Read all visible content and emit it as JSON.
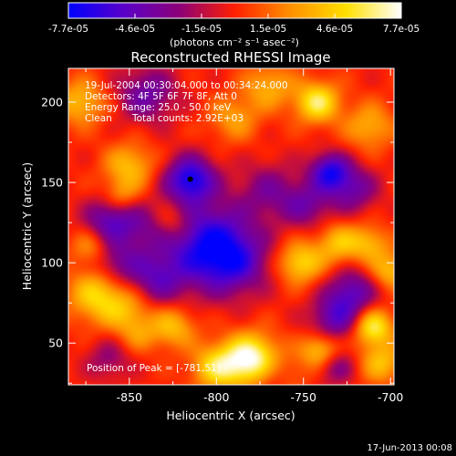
{
  "chart_data": {
    "type": "heatmap",
    "title": "Reconstructed RHESSI Image",
    "xlabel": "Heliocentric X (arcsec)",
    "ylabel": "Heliocentric Y (arcsec)",
    "xlim": [
      -885,
      -698
    ],
    "ylim": [
      24,
      221
    ],
    "x_ticks": [
      -850,
      -800,
      -750,
      -700
    ],
    "y_ticks": [
      50,
      100,
      150,
      200
    ],
    "x_tick_labels": [
      "-850",
      "-800",
      "-750",
      "-700"
    ],
    "y_tick_labels": [
      "50",
      "100",
      "150",
      "200"
    ],
    "colorbar": {
      "min": -7.7e-05,
      "max": 7.7e-05,
      "tick_labels": [
        "-7.7e-05",
        "-4.6e-05",
        "-1.5e-05",
        "1.5e-05",
        "4.6e-05",
        "7.7e-05"
      ],
      "unit_label": "(photons cm⁻² s⁻¹ asec⁻²)",
      "colors": [
        "#0000ff",
        "#5a00c8",
        "#8c0078",
        "#ff2000",
        "#ff9000",
        "#ffe000",
        "#ffffff"
      ]
    },
    "annotations": [
      "19-Jul-2004 00:30:04.000 to 00:34:24.000",
      "Detectors: 4F 5F 6F 7F 8F, Att 0",
      "Energy Range: 25.0 - 50.0 keV",
      "Clean",
      "Total counts: 2.92E+03"
    ],
    "peak_label": "Position of Peak = [-781,51]",
    "peak": [
      -781,
      51
    ],
    "sources": [
      {
        "x": -815,
        "y": 152,
        "v": -7e-05,
        "r": 10
      },
      {
        "x": -805,
        "y": 112,
        "v": -6.5e-05,
        "r": 18
      },
      {
        "x": -790,
        "y": 100,
        "v": -4e-05,
        "r": 14
      },
      {
        "x": -835,
        "y": 90,
        "v": -4e-05,
        "r": 12
      },
      {
        "x": -862,
        "y": 126,
        "v": -4.5e-05,
        "r": 10
      },
      {
        "x": -858,
        "y": 100,
        "v": -3.5e-05,
        "r": 10
      },
      {
        "x": -840,
        "y": 205,
        "v": -4e-05,
        "r": 12
      },
      {
        "x": -770,
        "y": 145,
        "v": -3e-05,
        "r": 12
      },
      {
        "x": -748,
        "y": 136,
        "v": -3.5e-05,
        "r": 10
      },
      {
        "x": -722,
        "y": 146,
        "v": -4e-05,
        "r": 10
      },
      {
        "x": -735,
        "y": 157,
        "v": -6e-05,
        "r": 8
      },
      {
        "x": -722,
        "y": 82,
        "v": -4.5e-05,
        "r": 10
      },
      {
        "x": -732,
        "y": 65,
        "v": -4.5e-05,
        "r": 10
      },
      {
        "x": -765,
        "y": 30,
        "v": -3.5e-05,
        "r": 8
      },
      {
        "x": -732,
        "y": 36,
        "v": -3.5e-05,
        "r": 8
      },
      {
        "x": -862,
        "y": 40,
        "v": -2.5e-05,
        "r": 9
      },
      {
        "x": -843,
        "y": 122,
        "v": -2.5e-05,
        "r": 10
      },
      {
        "x": -878,
        "y": 200,
        "v": 4e-05,
        "r": 10
      },
      {
        "x": -850,
        "y": 160,
        "v": 4e-05,
        "r": 10
      },
      {
        "x": -855,
        "y": 142,
        "v": 2.5e-05,
        "r": 7
      },
      {
        "x": -825,
        "y": 125,
        "v": 2.5e-05,
        "r": 8
      },
      {
        "x": -872,
        "y": 110,
        "v": 3e-05,
        "r": 8
      },
      {
        "x": -868,
        "y": 80,
        "v": 5e-05,
        "r": 12
      },
      {
        "x": -850,
        "y": 70,
        "v": 3e-05,
        "r": 10
      },
      {
        "x": -845,
        "y": 55,
        "v": 2e-05,
        "r": 8
      },
      {
        "x": -825,
        "y": 60,
        "v": 4e-05,
        "r": 9
      },
      {
        "x": -780,
        "y": 40,
        "v": 7.7e-05,
        "r": 11
      },
      {
        "x": -800,
        "y": 35,
        "v": 5e-05,
        "r": 10
      },
      {
        "x": -760,
        "y": 30,
        "v": 3e-05,
        "r": 8
      },
      {
        "x": -770,
        "y": 210,
        "v": 3.5e-05,
        "r": 10
      },
      {
        "x": -742,
        "y": 200,
        "v": 6e-05,
        "r": 9
      },
      {
        "x": -712,
        "y": 185,
        "v": 3.5e-05,
        "r": 10
      },
      {
        "x": -790,
        "y": 190,
        "v": 3e-05,
        "r": 10
      },
      {
        "x": -730,
        "y": 112,
        "v": 4e-05,
        "r": 9
      },
      {
        "x": -752,
        "y": 100,
        "v": 5e-05,
        "r": 9
      },
      {
        "x": -712,
        "y": 112,
        "v": 3.5e-05,
        "r": 8
      },
      {
        "x": -700,
        "y": 95,
        "v": 4e-05,
        "r": 8
      },
      {
        "x": -710,
        "y": 60,
        "v": 6e-05,
        "r": 8
      },
      {
        "x": -740,
        "y": 45,
        "v": 5e-05,
        "r": 8
      },
      {
        "x": -705,
        "y": 38,
        "v": 4e-05,
        "r": 9
      }
    ]
  },
  "footer": {
    "date": "17-Jun-2013 00:08"
  }
}
